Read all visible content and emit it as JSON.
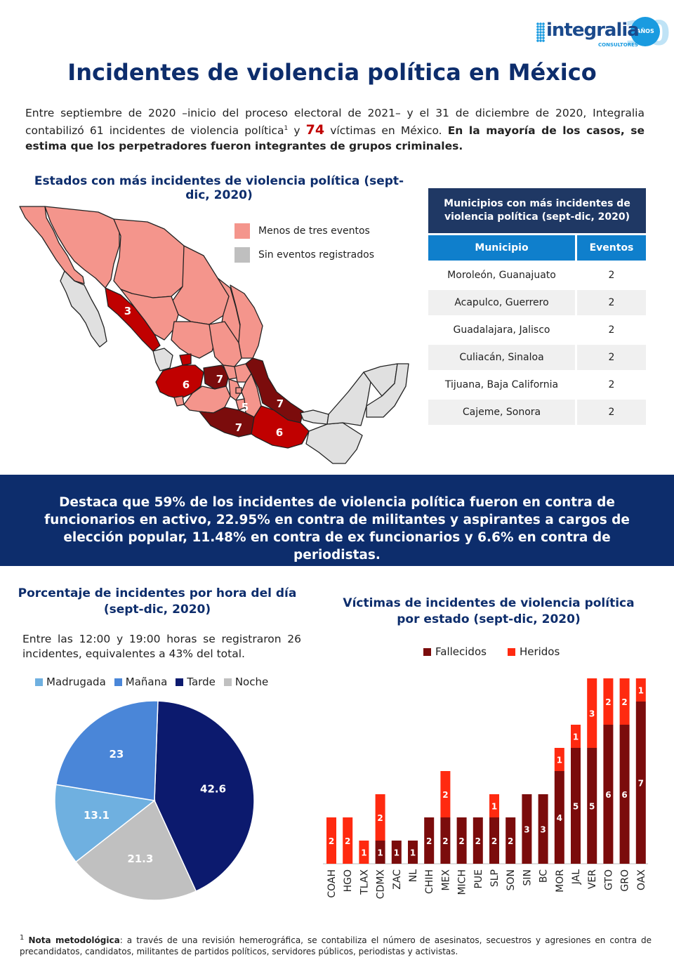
{
  "logo": {
    "name": "integralia",
    "sub": "CONSULTORES",
    "ten": "10",
    "anos": "AÑOS"
  },
  "title": "Incidentes de violencia política en México",
  "intro": {
    "p1": "Entre septiembre de 2020 –inicio del proceso electoral de 2021– y el 31 de diciembre de 2020, Integralia contabilizó 61 incidentes de violencia política",
    "sup": "1",
    "p2": " y ",
    "victims": "74",
    "p3": " víctimas en México. ",
    "bold": "En la mayoría de los casos, se estima que los perpetradores fueron integrantes de grupos criminales."
  },
  "map_section": {
    "title": "Estados con más incidentes de violencia política (sept-dic, 2020)",
    "legend": [
      {
        "label": "Menos de tres eventos",
        "color": "#f4958c"
      },
      {
        "label": "Sin eventos registrados",
        "color": "#bfbfbf"
      }
    ],
    "state_labels": [
      "3",
      "6",
      "7",
      "5",
      "7",
      "7",
      "6"
    ],
    "colors": {
      "few": "#f4958c",
      "none": "#e0e0e0",
      "medium": "#c00000",
      "high": "#7b0c0c"
    }
  },
  "municipios": {
    "title": "Municipios con más incidentes de violencia política (sept-dic, 2020)",
    "col_municipio": "Municipio",
    "col_eventos": "Eventos",
    "rows": [
      {
        "name": "Moroleón, Guanajuato",
        "events": "2"
      },
      {
        "name": "Acapulco, Guerrero",
        "events": "2"
      },
      {
        "name": "Guadalajara, Jalisco",
        "events": "2"
      },
      {
        "name": "Culiacán, Sinaloa",
        "events": "2"
      },
      {
        "name": "Tijuana, Baja California",
        "events": "2"
      },
      {
        "name": "Cajeme, Sonora",
        "events": "2"
      }
    ]
  },
  "banner": "Destaca que 59% de los incidentes de violencia política fueron en contra de funcionarios en activo, 22.95%  en contra de militantes y aspirantes a cargos de elección popular, 11.48% en contra de ex funcionarios y 6.6% en contra de periodistas.",
  "pie_section": {
    "title1": "Porcentaje de incidentes por hora del día",
    "title2": "(sept-dic, 2020)",
    "note": "Entre las 12:00 y 19:00 horas se registraron 26 incidentes, equivalentes a 43% del total."
  },
  "bar_section": {
    "title1": "Víctimas de incidentes de violencia política",
    "title2": "por estado (sept-dic, 2020)"
  },
  "footnote": {
    "sup": "1",
    "bold": "Nota metodológica",
    "text": ": a través de una revisión hemerográfica, se contabiliza el número de asesinatos, secuestros y agresiones en contra de precandidatos, candidatos, militantes de partidos políticos, servidores públicos, periodistas y activistas."
  },
  "chart_data": [
    {
      "type": "pie",
      "title": "Porcentaje de incidentes por hora del día (sept-dic, 2020)",
      "labels": [
        "Madrugada",
        "Mañana",
        "Tarde",
        "Noche"
      ],
      "values": [
        13.1,
        23,
        42.6,
        21.3
      ],
      "colors": [
        "#6fb0e0",
        "#4a86d8",
        "#0c1a6e",
        "#c0c0c0"
      ],
      "legend": "top"
    },
    {
      "type": "bar",
      "stacked": true,
      "title": "Víctimas de incidentes de violencia política por estado (sept-dic, 2020)",
      "categories": [
        "COAH",
        "HGO",
        "TLAX",
        "CDMX",
        "ZAC",
        "NL",
        "CHIH",
        "MEX",
        "MICH",
        "PUE",
        "SLP",
        "SON",
        "SIN",
        "BC",
        "MOR",
        "JAL",
        "VER",
        "GTO",
        "GRO",
        "OAX"
      ],
      "series": [
        {
          "name": "Fallecidos",
          "color": "#7b0c0c",
          "values": [
            0,
            0,
            0,
            1,
            1,
            1,
            2,
            2,
            2,
            2,
            2,
            2,
            3,
            3,
            4,
            5,
            5,
            6,
            6,
            7
          ]
        },
        {
          "name": "Heridos",
          "color": "#ff2a10",
          "values": [
            2,
            2,
            1,
            2,
            0,
            0,
            0,
            2,
            0,
            0,
            1,
            0,
            0,
            0,
            1,
            1,
            3,
            2,
            2,
            1
          ]
        }
      ],
      "ylim": [
        0,
        8
      ],
      "legend": "top"
    }
  ]
}
